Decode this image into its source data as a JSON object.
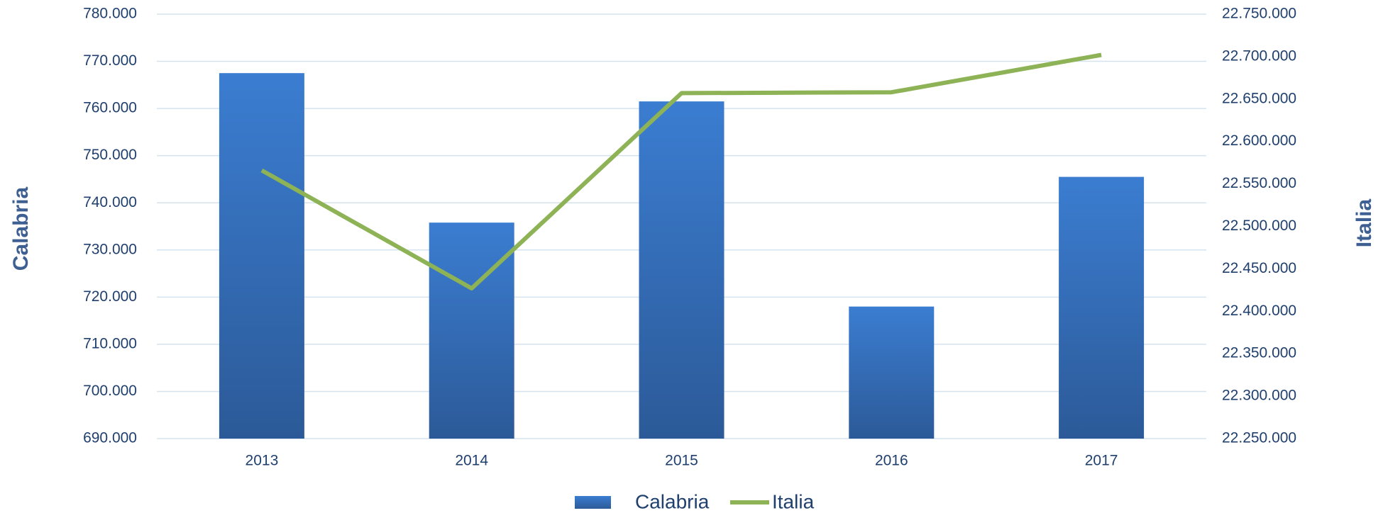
{
  "chart_data": {
    "type": "bar_line",
    "categories": [
      "2013",
      "2014",
      "2015",
      "2016",
      "2017"
    ],
    "series": [
      {
        "name": "Calabria",
        "type": "bar",
        "color": "#3b7dd1",
        "values": [
          767500,
          735800,
          761500,
          718000,
          745500
        ]
      },
      {
        "name": "Italia",
        "type": "line",
        "axis": "y2",
        "color": "#8db356",
        "values": [
          22566000,
          22427000,
          22657000,
          22658000,
          22702000
        ]
      }
    ],
    "ylabel": "Calabria",
    "y2label": "Italia",
    "ylim": [
      690000,
      780000
    ],
    "yticks": [
      {
        "value": 690000,
        "label": "690.000"
      },
      {
        "value": 700000,
        "label": "700.000"
      },
      {
        "value": 710000,
        "label": "710.000"
      },
      {
        "value": 720000,
        "label": "720.000"
      },
      {
        "value": 730000,
        "label": "730.000"
      },
      {
        "value": 740000,
        "label": "740.000"
      },
      {
        "value": 750000,
        "label": "750.000"
      },
      {
        "value": 760000,
        "label": "760.000"
      },
      {
        "value": 770000,
        "label": "770.000"
      },
      {
        "value": 780000,
        "label": "780.000"
      }
    ],
    "y2lim": [
      22250000,
      22750000
    ],
    "y2ticks": [
      {
        "value": 22250000,
        "label": "22.250.000"
      },
      {
        "value": 22300000,
        "label": "22.300.000"
      },
      {
        "value": 22350000,
        "label": "22.350.000"
      },
      {
        "value": 22400000,
        "label": "22.400.000"
      },
      {
        "value": 22450000,
        "label": "22.450.000"
      },
      {
        "value": 22500000,
        "label": "22.500.000"
      },
      {
        "value": 22550000,
        "label": "22.550.000"
      },
      {
        "value": 22600000,
        "label": "22.600.000"
      },
      {
        "value": 22650000,
        "label": "22.650.000"
      },
      {
        "value": 22700000,
        "label": "22.700.000"
      },
      {
        "value": 22750000,
        "label": "22.750.000"
      }
    ],
    "grid": true,
    "legend": "bottom"
  }
}
